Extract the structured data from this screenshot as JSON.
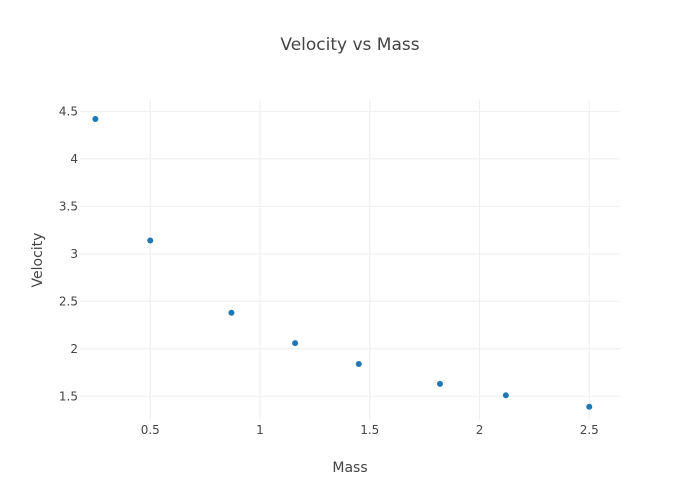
{
  "chart_data": {
    "type": "scatter",
    "title": "Velocity vs Mass",
    "xlabel": "Mass",
    "ylabel": "Velocity",
    "xlim": [
      0.18,
      2.64
    ],
    "ylim": [
      1.25,
      4.62
    ],
    "xticks": [
      0.5,
      1,
      1.5,
      2,
      2.5
    ],
    "xtick_labels": [
      "0.5",
      "1",
      "1.5",
      "2",
      "2.5"
    ],
    "yticks": [
      1.5,
      2,
      2.5,
      3,
      3.5,
      4,
      4.5
    ],
    "ytick_labels": [
      "1.5",
      "2",
      "2.5",
      "3",
      "3.5",
      "4",
      "4.5"
    ],
    "grid": true,
    "legend": "none",
    "marker_color": "#1f77b4",
    "series": [
      {
        "x": [
          0.25,
          0.5,
          0.87,
          1.16,
          1.45,
          1.82,
          2.12,
          2.5
        ],
        "y": [
          4.42,
          3.14,
          2.38,
          2.06,
          1.84,
          1.63,
          1.51,
          1.39
        ]
      }
    ]
  }
}
